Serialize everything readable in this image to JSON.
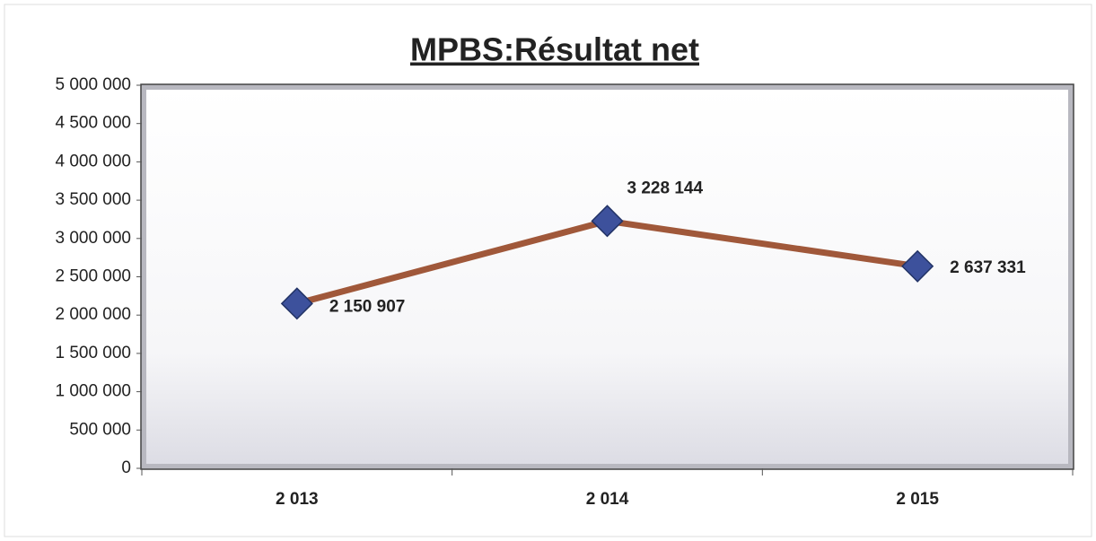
{
  "chart_data": {
    "type": "line",
    "title": "MPBS:Résultat net",
    "categories": [
      "2 013",
      "2 014",
      "2 015"
    ],
    "series": [
      {
        "name": "Résultat net",
        "color": "#a0583a",
        "marker_color": "#3d519c",
        "values": [
          2150907,
          3228144,
          2637331
        ],
        "value_labels": [
          "2 150 907",
          "3 228 144",
          "2 637 331"
        ]
      }
    ],
    "ylim": [
      0,
      5000000
    ],
    "yticks": [
      0,
      {
        "value": 500000,
        "label": "500 000"
      },
      {
        "value": 1000000,
        "label": "1 000 000"
      },
      {
        "value": 1500000,
        "label": "1 500 000"
      },
      {
        "value": 2000000,
        "label": "2 000 000"
      },
      {
        "value": 2500000,
        "label": "2 500 000"
      },
      {
        "value": 3000000,
        "label": "3 000 000"
      },
      {
        "value": 3500000,
        "label": "3 500 000"
      },
      {
        "value": 4000000,
        "label": "4 000 000"
      },
      {
        "value": 4500000,
        "label": "4 500 000"
      },
      {
        "value": 5000000,
        "label": "5 000 000"
      }
    ],
    "grid": false
  }
}
